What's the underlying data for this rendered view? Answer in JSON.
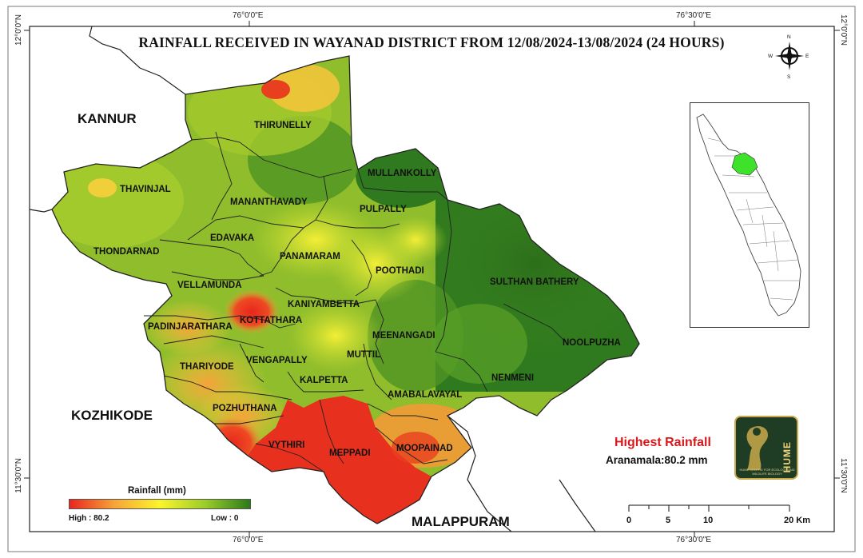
{
  "map": {
    "title": "RAINFALL RECEIVED IN WAYANAD DISTRICT FROM 12/08/2024-13/08/2024 (24 HOURS)",
    "coordinates": {
      "top_left_lon": "76°0'0\"E",
      "top_right_lon": "76°30'0\"E",
      "bottom_left_lon": "76°0'0\"E",
      "bottom_right_lon": "76°30'0\"E",
      "left_top_lat": "12°0'0\"N",
      "left_bottom_lat": "11°30'0\"N",
      "right_top_lat": "12°0'0\"N",
      "right_bottom_lat": "11°30'0\"N"
    },
    "neighbor_districts": {
      "north_west": "KANNUR",
      "south_west": "KOZHIKODE",
      "south": "MALAPPURAM"
    },
    "blocks": {
      "thirunelly": "THIRUNELLY",
      "mullankolly": "MULLANKOLLY",
      "thavinjal": "THAVINJAL",
      "mananthavady": "MANANTHAVADY",
      "pulpally": "PULPALLY",
      "edavaka": "EDAVAKA",
      "thondarnad": "THONDARNAD",
      "panamaram": "PANAMARAM",
      "poothadi": "POOTHADI",
      "sulthan_bathery": "SULTHAN BATHERY",
      "vellamunda": "VELLAMUNDA",
      "kaniyambetta": "KANIYAMBETTA",
      "padinjarathara": "PADINJARATHARA",
      "kottathara": "KOTTATHARA",
      "meenangadi": "MEENANGADI",
      "noolpuzha": "NOOLPUZHA",
      "vengapally": "VENGAPALLY",
      "muttil": "MUTTIL",
      "thariyode": "THARIYODE",
      "kalpetta": "KALPETTA",
      "nenmeni": "NENMENI",
      "amabalavayal": "AMABALAVAYAL",
      "pozhuthana": "POZHUTHANA",
      "vythiri": "VYTHIRI",
      "meppadi": "MEPPADI",
      "moopainad": "MOOPAINAD"
    },
    "highest_rainfall": {
      "label": "Highest Rainfall",
      "value": "Aranamala:80.2 mm"
    },
    "legend": {
      "title": "Rainfall (mm)",
      "high": "High : 80.2",
      "low": "Low : 0",
      "colors": [
        "#e8261e",
        "#f7a43a",
        "#fbf52b",
        "#9ccd2a",
        "#2b7a1a"
      ]
    },
    "scale_bar": {
      "labels": [
        "0",
        "5",
        "10",
        "20 Km"
      ]
    },
    "compass": {
      "n": "N",
      "s": "S",
      "e": "E",
      "w": "W"
    },
    "logo": {
      "text": "HUME",
      "subtitle": "HUME CENTRE FOR ECOLOGY AND WILDLIFE BIOLOGY"
    },
    "colors": {
      "heavy": "#e8261e",
      "moderate": "#f7a43a",
      "light": "#d9e63a",
      "low_green": "#6ca82a",
      "very_low": "#2f7a1e",
      "inset_highlight": "#3ee22a"
    }
  }
}
